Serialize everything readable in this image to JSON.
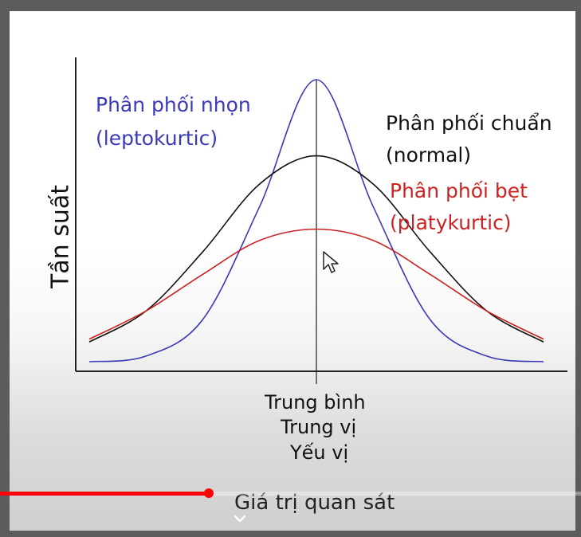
{
  "slide": {
    "ylabel": "Tần suất",
    "legend": {
      "leptokurtic_line1": "Phân phối nhọn",
      "leptokurtic_line2": "(leptokurtic)",
      "normal_line1": "Phân phối chuẩn",
      "normal_line2": "(normal)",
      "platykurtic_line1": "Phân phối bẹt",
      "platykurtic_line2": "(platykurtic)"
    },
    "center_labels": [
      "Trung bình",
      "Trung vị",
      "Yếu vị"
    ],
    "xlabel": "Giá trị quan sát"
  },
  "player": {
    "progress_fraction": 0.36,
    "progress_color": "#ff0000",
    "icons": [
      "chevron-down-icon",
      "mouse-cursor-icon"
    ]
  },
  "chart_data": {
    "type": "line",
    "x": [
      -4,
      -3,
      -2,
      -1,
      0,
      1,
      2,
      3,
      4
    ],
    "series": [
      {
        "color": "#3a3ab8",
        "values": [
          0.0,
          0.02,
          0.15,
          0.55,
          1.0,
          0.55,
          0.15,
          0.02,
          0.0
        ]
      },
      {
        "color": "#111111",
        "values": [
          0.07,
          0.18,
          0.39,
          0.63,
          0.73,
          0.63,
          0.39,
          0.18,
          0.07
        ]
      },
      {
        "color": "#cc2222",
        "values": [
          0.08,
          0.18,
          0.31,
          0.43,
          0.47,
          0.43,
          0.31,
          0.18,
          0.08
        ]
      }
    ],
    "xlim": [
      -4,
      4
    ],
    "ylim": [
      0,
      1
    ],
    "grid": false
  }
}
